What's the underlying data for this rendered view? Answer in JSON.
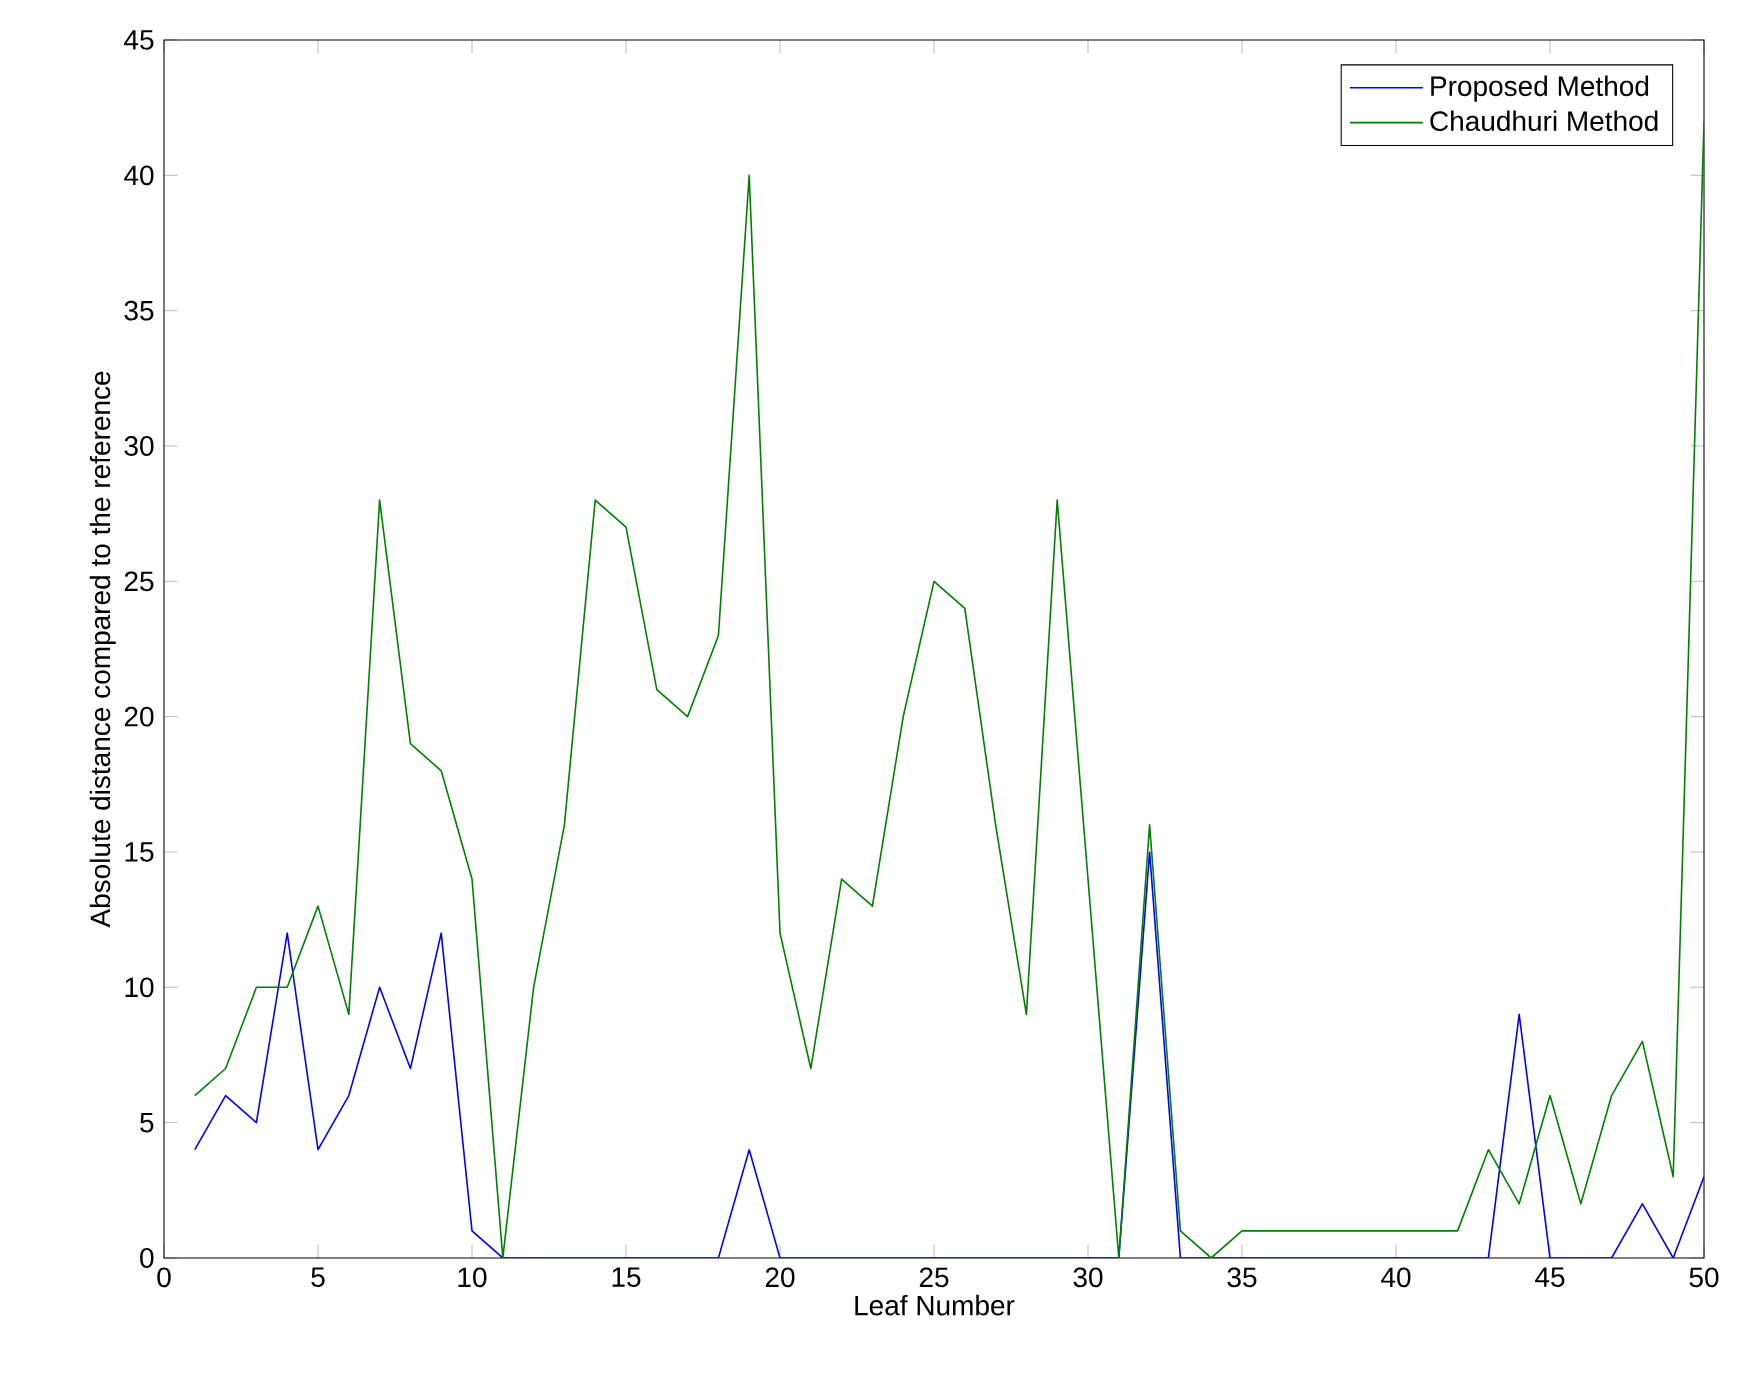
{
  "chart_data": {
    "type": "line",
    "xlabel": "Leaf Number",
    "ylabel": "Absolute distance compared to the reference",
    "x": [
      1,
      2,
      3,
      4,
      5,
      6,
      7,
      8,
      9,
      10,
      11,
      12,
      13,
      14,
      15,
      16,
      17,
      18,
      19,
      20,
      21,
      22,
      23,
      24,
      25,
      26,
      27,
      28,
      29,
      30,
      31,
      32,
      33,
      34,
      35,
      36,
      37,
      38,
      39,
      40,
      41,
      42,
      43,
      44,
      45,
      46,
      47,
      48,
      49,
      50
    ],
    "series": [
      {
        "name": "Proposed Method",
        "color": "#0000ff",
        "values": [
          4,
          6,
          5,
          12,
          4,
          6,
          10,
          7,
          12,
          1,
          0,
          0,
          0,
          0,
          0,
          0,
          0,
          0,
          4,
          0,
          0,
          0,
          0,
          0,
          0,
          0,
          0,
          0,
          0,
          0,
          0,
          15,
          0,
          0,
          0,
          0,
          0,
          0,
          0,
          0,
          0,
          0,
          0,
          9,
          0,
          0,
          0,
          2,
          0,
          3
        ]
      },
      {
        "name": "Chaudhuri Method",
        "color": "#008000",
        "values": [
          6,
          7,
          10,
          10,
          13,
          9,
          28,
          19,
          18,
          14,
          0,
          10,
          16,
          28,
          27,
          21,
          20,
          23,
          40,
          12,
          7,
          14,
          13,
          20,
          25,
          24,
          16,
          9,
          28,
          14,
          0,
          16,
          1,
          0,
          1,
          1,
          1,
          1,
          1,
          1,
          1,
          1,
          4,
          2,
          6,
          2,
          6,
          8,
          3,
          42
        ]
      }
    ],
    "xlim": [
      0,
      50
    ],
    "ylim": [
      0,
      45
    ],
    "xticks": [
      0,
      5,
      10,
      15,
      20,
      25,
      30,
      35,
      40,
      45,
      50
    ],
    "yticks": [
      0,
      5,
      10,
      15,
      20,
      25,
      30,
      35,
      40,
      45
    ],
    "grid": false,
    "legend": "top right",
    "marker": "none",
    "line_style": "solid"
  }
}
